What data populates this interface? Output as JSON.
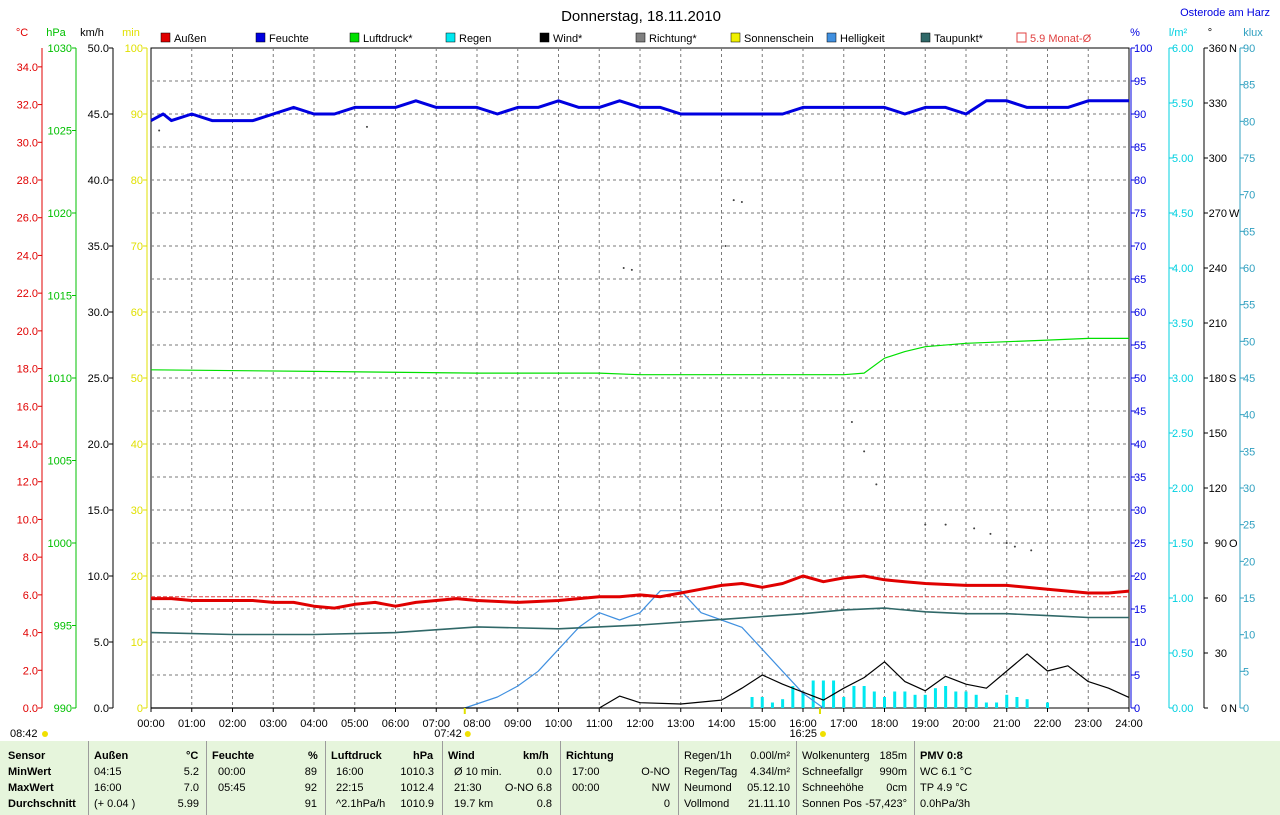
{
  "title": "Donnerstag, 18.11.2010",
  "location": "Osterode am Harz",
  "axes": {
    "temp": {
      "unit": "°C",
      "ticks": [
        "0.0",
        "2.0",
        "4.0",
        "6.0",
        "8.0",
        "10.0",
        "12.0",
        "14.0",
        "16.0",
        "18.0",
        "20.0",
        "22.0",
        "24.0",
        "26.0",
        "28.0",
        "30.0",
        "32.0",
        "34.0"
      ]
    },
    "press": {
      "unit": "hPa",
      "ticks": [
        "990",
        "995",
        "1000",
        "1005",
        "1010",
        "1015",
        "1020",
        "1025",
        "1030"
      ]
    },
    "wind": {
      "unit": "km/h",
      "ticks": [
        "0.0",
        "5.0",
        "10.0",
        "15.0",
        "20.0",
        "25.0",
        "30.0",
        "35.0",
        "40.0",
        "45.0",
        "50.0"
      ]
    },
    "sun": {
      "unit": "min",
      "ticks": [
        "0",
        "10",
        "20",
        "30",
        "40",
        "50",
        "60",
        "70",
        "80",
        "90",
        "100"
      ]
    },
    "hum": {
      "unit": "%",
      "ticks": [
        "0",
        "5",
        "10",
        "15",
        "20",
        "25",
        "30",
        "35",
        "40",
        "45",
        "50",
        "55",
        "60",
        "65",
        "70",
        "75",
        "80",
        "85",
        "90",
        "95",
        "100"
      ]
    },
    "rain": {
      "unit": "l/m²",
      "ticks": [
        "0.00",
        "0.50",
        "1.00",
        "1.50",
        "2.00",
        "2.50",
        "3.00",
        "3.50",
        "4.00",
        "4.50",
        "5.00",
        "5.50",
        "6.00"
      ]
    },
    "dir": {
      "unit": "°",
      "ticks": [
        "0",
        "30",
        "60",
        "90",
        "120",
        "150",
        "180",
        "210",
        "240",
        "270",
        "300",
        "330",
        "360"
      ],
      "letters": [
        "N",
        "",
        "",
        "O",
        "",
        "",
        "S",
        "",
        "",
        "W",
        "",
        "",
        "N"
      ]
    },
    "lux": {
      "unit": "klux",
      "ticks": [
        "0",
        "5",
        "10",
        "15",
        "20",
        "25",
        "30",
        "35",
        "40",
        "45",
        "50",
        "55",
        "60",
        "65",
        "70",
        "75",
        "80",
        "85",
        "90"
      ]
    },
    "x_ticks": [
      "00:00",
      "01:00",
      "02:00",
      "03:00",
      "04:00",
      "05:00",
      "06:00",
      "07:00",
      "08:00",
      "09:00",
      "10:00",
      "11:00",
      "12:00",
      "13:00",
      "14:00",
      "15:00",
      "16:00",
      "17:00",
      "18:00",
      "19:00",
      "20:00",
      "21:00",
      "22:00",
      "23:00",
      "24:00"
    ]
  },
  "sunrise": {
    "time": "07:42",
    "left_label": "08:42"
  },
  "sunset": {
    "time": "16:25"
  },
  "legend": [
    {
      "label": "Außen",
      "color": "#e00000",
      "style": "box"
    },
    {
      "label": "Feuchte",
      "color": "#0000e0",
      "style": "box"
    },
    {
      "label": "Luftdruck*",
      "color": "#00e000",
      "style": "box"
    },
    {
      "label": "Regen",
      "color": "#00e8f0",
      "style": "box"
    },
    {
      "label": "Wind*",
      "color": "#000000",
      "style": "box"
    },
    {
      "label": "Richtung*",
      "color": "#808080",
      "style": "box"
    },
    {
      "label": "Sonnenschein",
      "color": "#f0f000",
      "style": "box"
    },
    {
      "label": "Helligkeit",
      "color": "#4090e0",
      "style": "box"
    },
    {
      "label": "Taupunkt*",
      "color": "#306868",
      "style": "box"
    },
    {
      "label": "5.9 Monat-Ø",
      "color": "#e04040",
      "style": "outline"
    }
  ],
  "chart_data": {
    "type": "line",
    "title": "Donnerstag, 18.11.2010",
    "x_unit": "hour of day",
    "xlim": [
      0,
      24
    ],
    "monthly_mean_temp": 5.9,
    "series": [
      {
        "name": "Außen",
        "unit": "°C",
        "ylim": [
          0,
          35
        ],
        "color": "#e00000",
        "x": [
          0,
          0.5,
          1,
          2,
          2.5,
          3,
          3.5,
          4,
          4.5,
          5,
          5.5,
          6,
          6.5,
          7,
          7.5,
          8,
          9,
          10,
          11,
          11.5,
          12,
          12.5,
          13,
          13.5,
          14,
          14.5,
          15,
          15.5,
          16,
          16.5,
          17,
          17.5,
          18,
          18.5,
          19,
          20,
          21,
          22,
          22.5,
          23,
          23.5,
          24
        ],
        "y": [
          5.8,
          5.8,
          5.7,
          5.7,
          5.7,
          5.6,
          5.6,
          5.4,
          5.3,
          5.5,
          5.6,
          5.4,
          5.6,
          5.7,
          5.8,
          5.7,
          5.6,
          5.7,
          5.9,
          5.9,
          6.0,
          5.9,
          6.1,
          6.3,
          6.5,
          6.6,
          6.4,
          6.6,
          7.0,
          6.7,
          6.9,
          7.0,
          6.8,
          6.7,
          6.6,
          6.5,
          6.5,
          6.3,
          6.2,
          6.1,
          6.1,
          6.2
        ]
      },
      {
        "name": "Feuchte",
        "unit": "%",
        "ylim": [
          0,
          100
        ],
        "color": "#0000e0",
        "x": [
          0,
          0.3,
          0.5,
          1,
          1.5,
          2,
          2.5,
          3,
          3.5,
          4,
          4.5,
          5,
          5.5,
          6,
          6.5,
          7,
          7.5,
          8,
          8.5,
          9,
          9.5,
          10,
          10.5,
          11,
          11.5,
          12,
          12.5,
          13,
          13.5,
          14,
          14.5,
          15,
          15.5,
          16,
          16.5,
          17,
          17.5,
          18,
          18.5,
          19,
          19.5,
          20,
          20.5,
          21,
          21.5,
          22,
          22.5,
          23,
          23.5,
          24
        ],
        "y": [
          89,
          90,
          89,
          90,
          89,
          89,
          89,
          90,
          91,
          90,
          90,
          91,
          91,
          91,
          92,
          91,
          91,
          91,
          90,
          91,
          91,
          92,
          91,
          91,
          92,
          91,
          91,
          90,
          90,
          90,
          90,
          90,
          90,
          91,
          91,
          91,
          91,
          91,
          90,
          91,
          91,
          90,
          92,
          92,
          91,
          91,
          91,
          92,
          92,
          92
        ]
      },
      {
        "name": "Luftdruck*",
        "unit": "hPa",
        "ylim": [
          990,
          1030
        ],
        "color": "#00e000",
        "x": [
          0,
          4,
          8,
          11,
          12,
          16,
          17,
          17.5,
          18,
          18.5,
          19,
          20,
          21,
          22,
          23,
          24
        ],
        "y": [
          1010.5,
          1010.4,
          1010.3,
          1010.3,
          1010.2,
          1010.2,
          1010.2,
          1010.3,
          1011.2,
          1011.6,
          1011.9,
          1012.1,
          1012.2,
          1012.3,
          1012.4,
          1012.4
        ]
      },
      {
        "name": "Wind*",
        "unit": "km/h",
        "ylim": [
          0,
          50
        ],
        "color": "#000000",
        "x": [
          0,
          11,
          11.5,
          12,
          13,
          14,
          14.5,
          15,
          15.5,
          16,
          16.5,
          17,
          17.5,
          18,
          18.5,
          19,
          19.5,
          20,
          20.5,
          21,
          21.5,
          22,
          22.5,
          23,
          23.5,
          24
        ],
        "y": [
          0,
          0,
          0.9,
          0.4,
          0.3,
          0.6,
          1.5,
          2.5,
          1.8,
          1.2,
          0.6,
          1.5,
          2.3,
          3.5,
          2.0,
          1.3,
          2.4,
          1.8,
          1.5,
          2.8,
          4.1,
          2.8,
          3.2,
          2.0,
          1.5,
          0.8
        ]
      },
      {
        "name": "Taupunkt*",
        "unit": "°C",
        "ylim": [
          0,
          35
        ],
        "color": "#306868",
        "x": [
          0,
          2,
          4,
          6,
          8,
          10,
          12,
          14,
          16,
          17,
          18,
          19,
          20,
          21,
          22,
          23,
          24
        ],
        "y": [
          4.0,
          3.9,
          3.9,
          4.0,
          4.3,
          4.2,
          4.4,
          4.7,
          5.0,
          5.2,
          5.3,
          5.1,
          5.0,
          5.0,
          4.9,
          4.8,
          4.8
        ]
      },
      {
        "name": "Helligkeit",
        "unit": "klux",
        "ylim": [
          0,
          90
        ],
        "color": "#4090e0",
        "x": [
          7.7,
          8.5,
          9,
          9.5,
          10,
          10.5,
          11,
          11.5,
          12,
          12.5,
          13,
          13.5,
          14,
          14.5,
          15,
          15.5,
          16,
          16.5
        ],
        "y": [
          0,
          1.5,
          3,
          5,
          8,
          11,
          13,
          12,
          13,
          16,
          16,
          13,
          12,
          11,
          8,
          5,
          2,
          0
        ]
      },
      {
        "name": "Regen",
        "unit": "l/m²",
        "ylim": [
          0,
          6
        ],
        "color": "#00e8f0",
        "type": "bar",
        "x": [
          14.75,
          15,
          15.25,
          15.5,
          15.75,
          16,
          16.25,
          16.5,
          16.75,
          17,
          17.25,
          17.5,
          17.75,
          18,
          18.25,
          18.5,
          18.75,
          19,
          19.25,
          19.5,
          19.75,
          20,
          20.25,
          20.5,
          20.75,
          21,
          21.25,
          21.5,
          22
        ],
        "y": [
          0.1,
          0.1,
          0.05,
          0.08,
          0.2,
          0.15,
          0.25,
          0.25,
          0.25,
          0.1,
          0.2,
          0.2,
          0.15,
          0.1,
          0.15,
          0.15,
          0.12,
          0.12,
          0.18,
          0.2,
          0.15,
          0.15,
          0.12,
          0.05,
          0.05,
          0.12,
          0.1,
          0.08,
          0.05
        ]
      },
      {
        "name": "Richtung*",
        "unit": "°",
        "ylim": [
          0,
          360
        ],
        "color": "#404040",
        "type": "scatter",
        "x": [
          0.2,
          5.3,
          14.1,
          14.3,
          14.5,
          11.6,
          11.8,
          17.2,
          17.5,
          17.8,
          19,
          19.5,
          20.2,
          20.6,
          21,
          21.2,
          21.6
        ],
        "y": [
          315,
          317,
          252,
          277,
          276,
          240,
          239,
          156,
          140,
          122,
          100,
          100,
          98,
          95,
          90,
          88,
          86
        ]
      }
    ]
  },
  "stats": {
    "headers": {
      "sensor": "Sensor",
      "aussen": "Außen",
      "aussen_unit": "°C",
      "feuchte": "Feuchte",
      "feuchte_unit": "%",
      "luft": "Luftdruck",
      "luft_unit": "hPa",
      "wind": "Wind",
      "wind_unit": "km/h",
      "richtung": "Richtung"
    },
    "rows": [
      {
        "label": "MinWert",
        "a_t": "04:15",
        "a_v": "5.2",
        "f_t": "00:00",
        "f_v": "89",
        "l_t": "16:00",
        "l_v": "1010.3",
        "w_t": "Ø 10 min.",
        "w_v": "0.0",
        "r_t": "17:00",
        "r_v": "O-NO"
      },
      {
        "label": "MaxWert",
        "a_t": "16:00",
        "a_v": "7.0",
        "f_t": "05:45",
        "f_v": "92",
        "l_t": "22:15",
        "l_v": "1012.4",
        "w_t": "21:30",
        "w_v": "O-NO 6.8",
        "r_t": "00:00",
        "r_v": "NW"
      },
      {
        "label": "Durchschnitt",
        "a_t": "(+ 0.04 )",
        "a_v": "5.99",
        "f_t": "",
        "f_v": "91",
        "l_t": "^2.1hPa/h",
        "l_v": "1010.9",
        "w_t": "19.7 km",
        "w_v": "0.8",
        "r_t": "",
        "r_v": "0"
      }
    ],
    "extra": [
      {
        "k1": "Regen/1h",
        "v1": "0.00l/m²",
        "k2": "Wolkenunterg",
        "v2": "185m",
        "k3": "PMV 0:8"
      },
      {
        "k1": "Regen/Tag",
        "v1": "4.34l/m²",
        "k2": "Schneefallgr",
        "v2": "990m",
        "k3": "WC 6.1 °C"
      },
      {
        "k1": "Neumond",
        "v1": "05.12.10",
        "k2": "Schneehöhe",
        "v2": "0cm",
        "k3": "TP 4.9 °C"
      },
      {
        "k1": "Vollmond",
        "v1": "21.11.10",
        "k2": "Sonnen Pos",
        "v2": "-57,423°",
        "k3": "0.0hPa/3h"
      }
    ]
  }
}
